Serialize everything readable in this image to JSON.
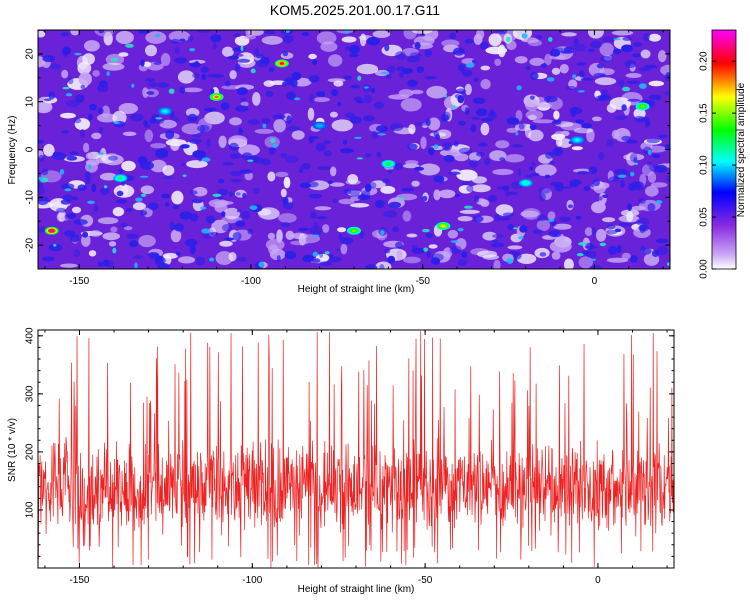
{
  "title": "KOM5.2025.201.00.17.G11",
  "chart_data": [
    {
      "type": "heatmap",
      "xlabel": "Height of straight line (km)",
      "ylabel": "Frequency (Hz)",
      "xlim": [
        -162,
        22
      ],
      "ylim": [
        -25,
        25
      ],
      "xticks": [
        -150,
        -100,
        -50,
        0
      ],
      "xtick_labels": [
        "-150",
        "-100",
        "-50",
        "0"
      ],
      "yticks": [
        20,
        10,
        0,
        -10,
        -20
      ],
      "ytick_labels": [
        "20",
        "10",
        "0",
        "-10",
        "-20"
      ],
      "colorbar": {
        "label": "Normalized spectral amplitude",
        "range": [
          0,
          0.23
        ],
        "ticks": [
          0.0,
          0.05,
          0.1,
          0.15,
          0.2
        ],
        "tick_labels": [
          "0.00",
          "0.05",
          "0.10",
          "0.15",
          "0.20"
        ],
        "colors": [
          "#ffffff",
          "#8a2be2",
          "#0000ff",
          "#00ffff",
          "#00ff00",
          "#ffff00",
          "#ff0000",
          "#ff00ff"
        ]
      },
      "hotspots": [
        {
          "x": -158,
          "y": -17,
          "value": 0.23
        },
        {
          "x": -91,
          "y": 18,
          "value": 0.21
        },
        {
          "x": -110,
          "y": 11,
          "value": 0.19
        },
        {
          "x": 14,
          "y": 9,
          "value": 0.15
        },
        {
          "x": -44,
          "y": -16,
          "value": 0.17
        },
        {
          "x": -70,
          "y": -17,
          "value": 0.15
        },
        {
          "x": -138,
          "y": -6,
          "value": 0.12
        },
        {
          "x": -60,
          "y": -3,
          "value": 0.13
        },
        {
          "x": -20,
          "y": -7,
          "value": 0.11
        },
        {
          "x": -5,
          "y": 2,
          "value": 0.1
        },
        {
          "x": -125,
          "y": 8,
          "value": 0.1
        },
        {
          "x": -80,
          "y": 5,
          "value": 0.09
        }
      ],
      "grid": false
    },
    {
      "type": "line",
      "xlabel": "Height of straight line (km)",
      "ylabel": "SNR (10 * v/v)",
      "xlim": [
        -162,
        22
      ],
      "ylim": [
        0,
        410
      ],
      "xticks": [
        -150,
        -100,
        -50,
        0
      ],
      "xtick_labels": [
        "-150",
        "-100",
        "-50",
        "0"
      ],
      "yticks": [
        100,
        200,
        300,
        400
      ],
      "ytick_labels": [
        "100",
        "200",
        "300",
        "400"
      ],
      "series": [
        {
          "color": "#ee2222",
          "mean": 140,
          "spread": 65,
          "peak_max": 410
        }
      ],
      "grid": false
    }
  ]
}
